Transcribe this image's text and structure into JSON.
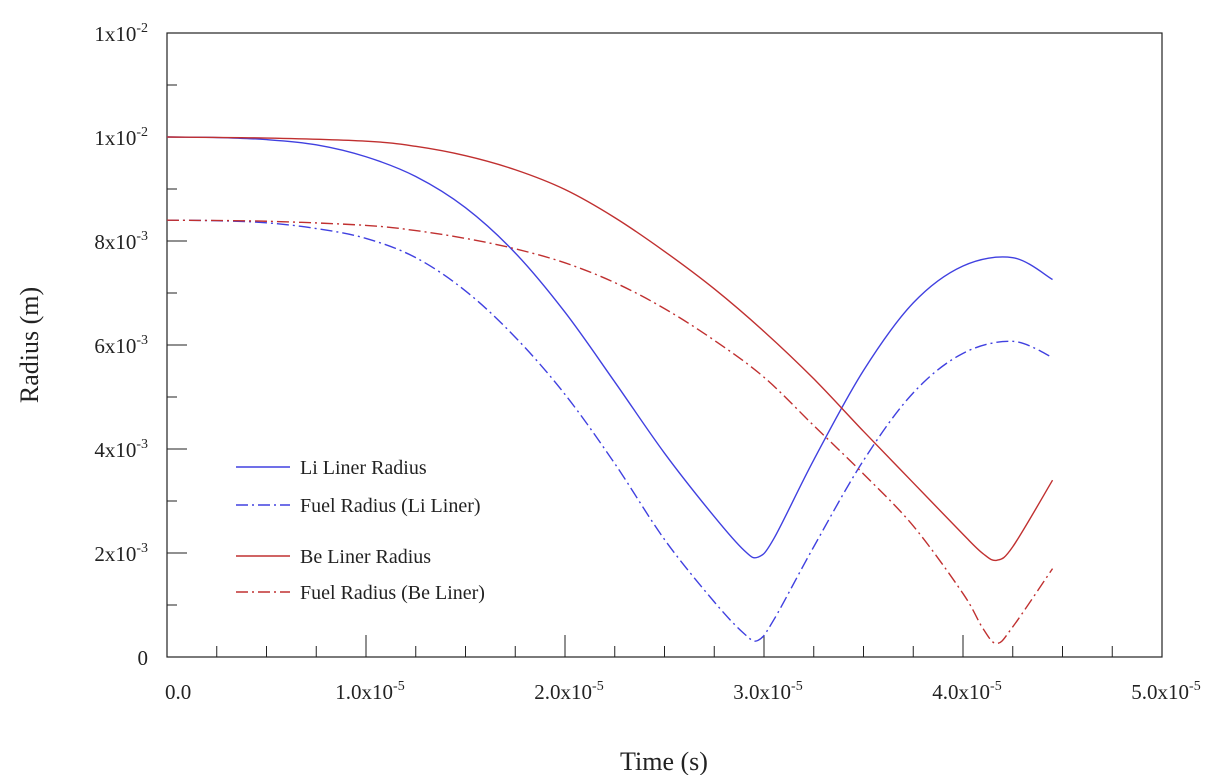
{
  "chart_data": {
    "type": "line",
    "xlabel": "Time (s)",
    "ylabel": "Radius (m)",
    "xlim": [
      0,
      5e-05
    ],
    "ylim": [
      0,
      0.012
    ],
    "x_ticks": [
      {
        "value": 0,
        "label": "0.0",
        "exp": ""
      },
      {
        "value": 1e-05,
        "label": "1.0x10",
        "exp": "-5"
      },
      {
        "value": 2e-05,
        "label": "2.0x10",
        "exp": "-5"
      },
      {
        "value": 3e-05,
        "label": "3.0x10",
        "exp": "-5"
      },
      {
        "value": 4e-05,
        "label": "4.0x10",
        "exp": "-5"
      },
      {
        "value": 5e-05,
        "label": "5.0x10",
        "exp": "-5"
      }
    ],
    "y_ticks": [
      {
        "value": 0,
        "label": "0",
        "exp": ""
      },
      {
        "value": 0.002,
        "label": "2x10",
        "exp": "-3"
      },
      {
        "value": 0.004,
        "label": "4x10",
        "exp": "-3"
      },
      {
        "value": 0.006,
        "label": "6x10",
        "exp": "-3"
      },
      {
        "value": 0.008,
        "label": "8x10",
        "exp": "-3"
      },
      {
        "value": 0.01,
        "label": "1x10",
        "exp": "-2"
      },
      {
        "value": 0.012,
        "label": "1x10",
        "exp": "-2"
      }
    ],
    "grid": false,
    "legend_position": "bottom-left",
    "series": [
      {
        "name": "Li Liner Radius",
        "color": "#4040e0",
        "style": "solid",
        "x": [
          0,
          2.5e-06,
          5e-06,
          7.5e-06,
          1e-05,
          1.25e-05,
          1.5e-05,
          1.75e-05,
          2e-05,
          2.25e-05,
          2.5e-05,
          2.75e-05,
          2.9e-05,
          2.97e-05,
          3.05e-05,
          3.25e-05,
          3.5e-05,
          3.75e-05,
          4e-05,
          4.25e-05,
          4.45e-05
        ],
        "y": [
          0.01,
          0.00999,
          0.00995,
          0.00985,
          0.00962,
          0.00924,
          0.00864,
          0.00777,
          0.00663,
          0.00529,
          0.00392,
          0.0027,
          0.00205,
          0.00192,
          0.00228,
          0.00379,
          0.00551,
          0.00681,
          0.00752,
          0.00768,
          0.00726
        ]
      },
      {
        "name": "Fuel Radius (Li Liner)",
        "color": "#4040e0",
        "style": "dashdot",
        "x": [
          0,
          2.5e-06,
          5e-06,
          7.5e-06,
          1e-05,
          1.25e-05,
          1.5e-05,
          1.75e-05,
          2e-05,
          2.25e-05,
          2.5e-05,
          2.75e-05,
          2.9e-05,
          2.97e-05,
          3.05e-05,
          3.25e-05,
          3.5e-05,
          3.75e-05,
          4e-05,
          4.25e-05,
          4.45e-05
        ],
        "y": [
          0.0084,
          0.00839,
          0.00835,
          0.00824,
          0.00805,
          0.00768,
          0.00704,
          0.00615,
          0.00505,
          0.00372,
          0.00226,
          0.00106,
          0.00045,
          0.00032,
          0.00072,
          0.00212,
          0.00378,
          0.00508,
          0.00584,
          0.00607,
          0.00576
        ]
      },
      {
        "name": "Be Liner Radius",
        "color": "#c03030",
        "style": "solid",
        "x": [
          0,
          5e-06,
          1e-05,
          1.25e-05,
          1.5e-05,
          1.75e-05,
          2e-05,
          2.25e-05,
          2.5e-05,
          2.75e-05,
          3e-05,
          3.25e-05,
          3.5e-05,
          3.75e-05,
          4e-05,
          4.1e-05,
          4.17e-05,
          4.25e-05,
          4.45e-05
        ],
        "y": [
          0.01,
          0.00998,
          0.00992,
          0.00982,
          0.00964,
          0.00937,
          0.00899,
          0.00845,
          0.0078,
          0.00708,
          0.00626,
          0.00535,
          0.00434,
          0.00335,
          0.00236,
          0.00199,
          0.00186,
          0.00212,
          0.0034
        ]
      },
      {
        "name": "Fuel Radius (Be Liner)",
        "color": "#c03030",
        "style": "dashdot",
        "x": [
          0,
          5e-06,
          1e-05,
          1.25e-05,
          1.5e-05,
          1.75e-05,
          2e-05,
          2.25e-05,
          2.5e-05,
          2.75e-05,
          3e-05,
          3.25e-05,
          3.5e-05,
          3.75e-05,
          4e-05,
          4.1e-05,
          4.17e-05,
          4.25e-05,
          4.45e-05
        ],
        "y": [
          0.0084,
          0.00838,
          0.0083,
          0.0082,
          0.00805,
          0.00785,
          0.00758,
          0.0072,
          0.0067,
          0.00609,
          0.00538,
          0.00445,
          0.00352,
          0.00252,
          0.00122,
          0.00055,
          0.00026,
          0.00058,
          0.0017
        ]
      }
    ]
  }
}
